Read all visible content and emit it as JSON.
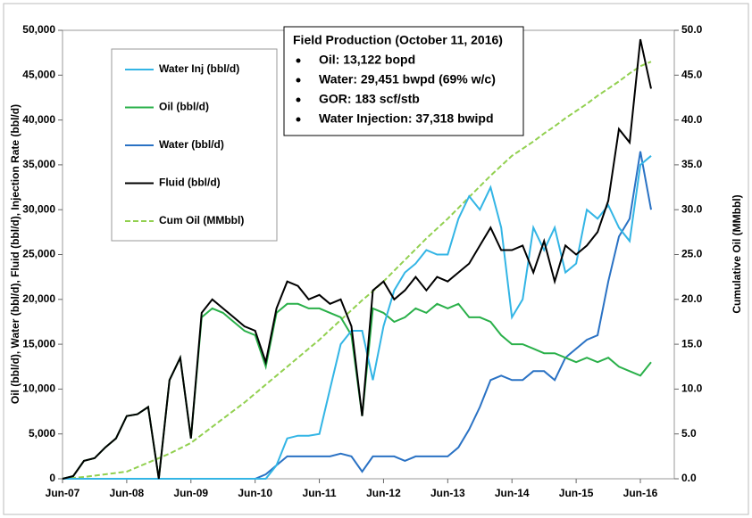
{
  "chart_data": {
    "type": "line",
    "y_label": "Oil (bbl/d), Water (bbl/d), Fluid (bbl/d), Injection Rate (bbl/d)",
    "y2_label": "Cumulative Oil (MMbbl)",
    "annotation": {
      "title": "Field Production (October 11, 2016)",
      "lines": [
        "Oil: 13,122 bopd",
        "Water: 29,451 bwpd (69% w/c)",
        "GOR: 183 scf/stb",
        "Water Injection: 37,318 bwipd"
      ]
    },
    "categories": [
      "Jun-07",
      null,
      null,
      null,
      null,
      null,
      "Jun-08",
      null,
      null,
      null,
      null,
      null,
      "Jun-09",
      null,
      null,
      null,
      null,
      null,
      "Jun-10",
      null,
      null,
      null,
      null,
      null,
      "Jun-11",
      null,
      null,
      null,
      null,
      null,
      "Jun-12",
      null,
      null,
      null,
      null,
      null,
      "Jun-13",
      null,
      null,
      null,
      null,
      null,
      "Jun-14",
      null,
      null,
      null,
      null,
      null,
      "Jun-15",
      null,
      null,
      null,
      null,
      null,
      "Jun-16",
      null
    ],
    "ylim": [
      0,
      50000
    ],
    "yticks": [
      0,
      {
        "value": 5000,
        "label": "5,000"
      },
      {
        "value": 10000,
        "label": "10,000"
      },
      {
        "value": 15000,
        "label": "15,000"
      },
      {
        "value": 20000,
        "label": "20,000"
      },
      {
        "value": 25000,
        "label": "25,000"
      },
      {
        "value": 30000,
        "label": "30,000"
      },
      {
        "value": 35000,
        "label": "35,000"
      },
      {
        "value": 40000,
        "label": "40,000"
      },
      {
        "value": 45000,
        "label": "45,000"
      },
      {
        "value": 50000,
        "label": "50,000"
      }
    ],
    "y2lim": [
      0,
      50
    ],
    "y2ticks": [
      {
        "value": 0,
        "label": "0.0"
      },
      {
        "value": 5,
        "label": "5.0"
      },
      {
        "value": 10,
        "label": "10.0"
      },
      {
        "value": 15,
        "label": "15.0"
      },
      {
        "value": 20,
        "label": "20.0"
      },
      {
        "value": 25,
        "label": "25.0"
      },
      {
        "value": 30,
        "label": "30.0"
      },
      {
        "value": 35,
        "label": "35.0"
      },
      {
        "value": 40,
        "label": "40.0"
      },
      {
        "value": 45,
        "label": "45.0"
      },
      {
        "value": 50,
        "label": "50.0"
      }
    ],
    "series": [
      {
        "name": "Water Inj (bbl/d)",
        "color": "#33b5e5",
        "values": [
          0,
          0,
          0,
          0,
          0,
          0,
          0,
          0,
          0,
          0,
          0,
          0,
          0,
          0,
          0,
          0,
          0,
          0,
          0,
          0,
          1500,
          4500,
          4800,
          4800,
          5000,
          10000,
          15000,
          16500,
          16500,
          11000,
          17000,
          21000,
          23000,
          24000,
          25500,
          25000,
          25000,
          29000,
          31500,
          30000,
          32500,
          28000,
          18000,
          20000,
          28000,
          25500,
          28000,
          23000,
          24000,
          30000,
          29000,
          30500,
          28000,
          26500,
          35000,
          36000
        ]
      },
      {
        "name": "Oil (bbl/d)",
        "color": "#2ab04a",
        "values": [
          0,
          300,
          2000,
          2300,
          3500,
          4500,
          7000,
          7200,
          8000,
          0,
          11000,
          13500,
          4500,
          18000,
          19000,
          18500,
          17500,
          16500,
          16000,
          12500,
          18500,
          19500,
          19500,
          19000,
          19000,
          18500,
          18000,
          16000,
          7000,
          19000,
          18500,
          17500,
          18000,
          19000,
          18500,
          19500,
          19000,
          19500,
          18000,
          18000,
          17500,
          16000,
          15000,
          15000,
          14500,
          14000,
          14000,
          13500,
          13000,
          13500,
          13000,
          13500,
          12500,
          12000,
          11500,
          13000
        ]
      },
      {
        "name": "Water (bbl/d)",
        "color": "#2a72c4",
        "values": [
          0,
          0,
          0,
          0,
          0,
          0,
          0,
          0,
          0,
          0,
          0,
          0,
          0,
          0,
          0,
          0,
          0,
          0,
          0,
          500,
          1500,
          2500,
          2500,
          2500,
          2500,
          2500,
          2800,
          2500,
          800,
          2500,
          2500,
          2500,
          2000,
          2500,
          2500,
          2500,
          2500,
          3500,
          5500,
          8000,
          11000,
          11500,
          11000,
          11000,
          12000,
          12000,
          11000,
          13500,
          14500,
          15500,
          16000,
          22000,
          27000,
          29000,
          36500,
          30000
        ]
      },
      {
        "name": "Fluid (bbl/d)",
        "color": "#000000",
        "values": [
          0,
          300,
          2000,
          2300,
          3500,
          4500,
          7000,
          7200,
          8000,
          0,
          11000,
          13500,
          4500,
          18500,
          20000,
          19000,
          18000,
          17000,
          16500,
          13000,
          19000,
          22000,
          21500,
          20000,
          20500,
          19500,
          20000,
          17000,
          7000,
          21000,
          22000,
          20000,
          21000,
          22500,
          21000,
          22500,
          22000,
          23000,
          24000,
          26000,
          28000,
          25500,
          25500,
          26000,
          23000,
          26500,
          22000,
          26000,
          25000,
          26000,
          27500,
          31000,
          39000,
          37500,
          49000,
          43500
        ]
      },
      {
        "name": "Cum Oil (MMbbl)",
        "color": "#92d050",
        "dashed": true,
        "axis": "y2",
        "values": [
          0,
          0.1,
          0.2,
          0.35,
          0.5,
          0.65,
          0.8,
          1.3,
          1.8,
          2.3,
          2.8,
          3.4,
          4.0,
          4.9,
          5.8,
          6.7,
          7.6,
          8.5,
          9.5,
          10.5,
          11.5,
          12.5,
          13.5,
          14.5,
          15.5,
          16.6,
          17.7,
          18.8,
          19.9,
          20.9,
          22.0,
          23.2,
          24.4,
          25.6,
          26.8,
          27.9,
          29.0,
          30.2,
          31.4,
          32.6,
          33.8,
          34.9,
          36.0,
          36.8,
          37.6,
          38.5,
          39.3,
          40.2,
          41.0,
          41.8,
          42.7,
          43.5,
          44.3,
          45.2,
          46.0,
          46.5
        ]
      }
    ]
  }
}
